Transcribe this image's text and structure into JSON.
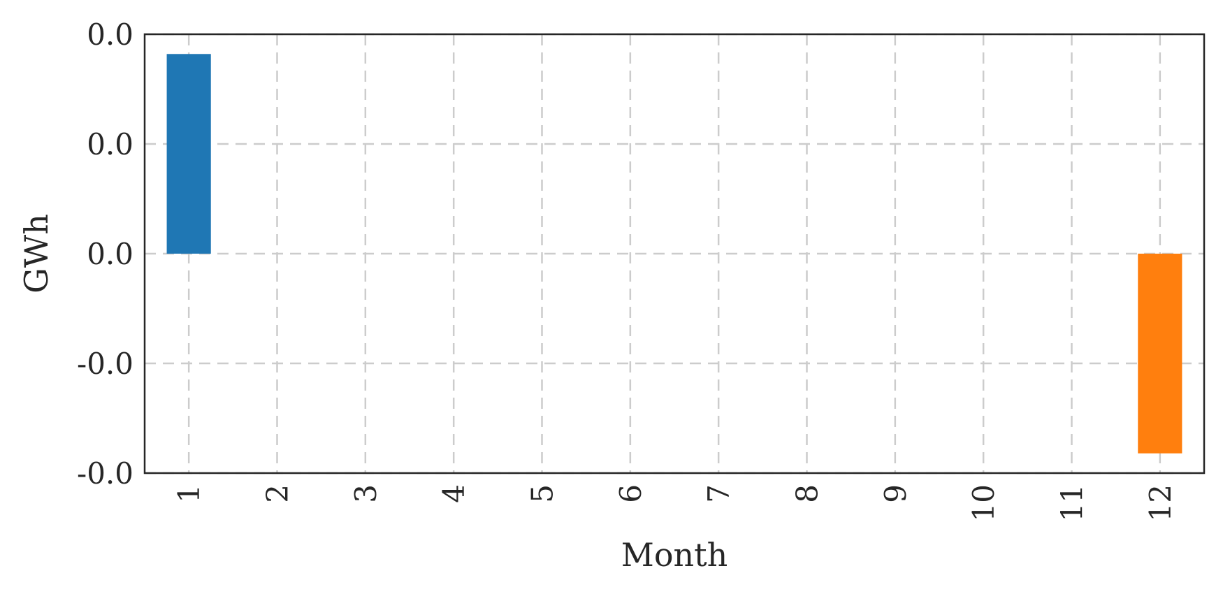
{
  "chart_data": {
    "type": "bar",
    "xlabel": "Month",
    "ylabel": "GWh",
    "categories": [
      "1",
      "2",
      "3",
      "4",
      "5",
      "6",
      "7",
      "8",
      "9",
      "10",
      "11",
      "12"
    ],
    "values": [
      0.0182,
      0,
      0,
      0,
      0,
      0,
      0,
      0,
      0,
      0,
      0,
      -0.0182
    ],
    "bar_colors": [
      "#1f77b4",
      null,
      null,
      null,
      null,
      null,
      null,
      null,
      null,
      null,
      null,
      "#ff7f0e"
    ],
    "ylim": [
      -0.02,
      0.02
    ],
    "y_ticks": [
      -0.02,
      -0.01,
      0.0,
      0.01,
      0.02
    ],
    "y_tick_labels": [
      "-0.0",
      "-0.0",
      "0.0",
      "0.0",
      "0.0"
    ],
    "grid": true,
    "legend": false
  }
}
